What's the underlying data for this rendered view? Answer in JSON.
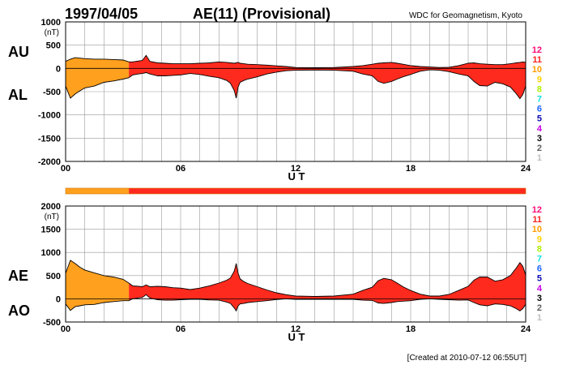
{
  "header": {
    "date": "1997/04/05",
    "title": "AE(11) (Provisional)",
    "source": "WDC for Geomagnetism, Kyoto"
  },
  "footer": {
    "created": "[Created at 2010-07-12 06:55UT]"
  },
  "colors": {
    "series_early": "#ffa01e",
    "series_main": "#ff2a1e",
    "outline": "#000000",
    "grid": "#999999"
  },
  "legend": {
    "levels": [
      {
        "label": "12",
        "color": "#ff0a78"
      },
      {
        "label": "11",
        "color": "#ff2020"
      },
      {
        "label": "10",
        "color": "#ff9c00"
      },
      {
        "label": "9",
        "color": "#ffd200"
      },
      {
        "label": "8",
        "color": "#aef000"
      },
      {
        "label": "7",
        "color": "#14e0e0"
      },
      {
        "label": "6",
        "color": "#1e64ff"
      },
      {
        "label": "5",
        "color": "#0a0ab4"
      },
      {
        "label": "4",
        "color": "#c800e6"
      },
      {
        "label": "3",
        "color": "#000000"
      },
      {
        "label": "2",
        "color": "#606060"
      },
      {
        "label": "1",
        "color": "#c0c0c0"
      }
    ]
  },
  "activity_bar": {
    "segments": [
      {
        "from": 0,
        "to": 3.3,
        "color": "#ffa01e"
      },
      {
        "from": 3.3,
        "to": 24,
        "color": "#ff2a1e"
      }
    ]
  },
  "chart_data": [
    {
      "type": "area",
      "name": "au-al-panel",
      "unit": "(nT)",
      "series_labels": {
        "upper": "AU",
        "lower": "AL"
      },
      "xlabel": "U T",
      "xlim": [
        0,
        24
      ],
      "ylim": [
        -2000,
        1000
      ],
      "yticks": [
        1000,
        500,
        0,
        -500,
        -1000,
        -1500,
        -2000
      ],
      "xticks": [
        {
          "v": 0,
          "label": "00"
        },
        {
          "v": 6,
          "label": "06"
        },
        {
          "v": 12,
          "label": "12"
        },
        {
          "v": 18,
          "label": "18"
        },
        {
          "v": 24,
          "label": "24"
        }
      ],
      "x": [
        0,
        0.25,
        0.5,
        0.75,
        1.0,
        1.5,
        2.0,
        2.5,
        3.0,
        3.3,
        3.5,
        3.8,
        4.0,
        4.2,
        4.4,
        4.8,
        5.2,
        5.6,
        6.0,
        6.5,
        7.0,
        7.5,
        8.0,
        8.4,
        8.6,
        8.8,
        8.9,
        9.0,
        9.1,
        9.3,
        9.5,
        10.0,
        10.5,
        11.0,
        11.5,
        12.0,
        13.0,
        14.0,
        15.0,
        15.5,
        16.0,
        16.3,
        16.6,
        17.0,
        17.3,
        17.6,
        18.0,
        18.5,
        19.0,
        19.5,
        20.0,
        20.5,
        21.0,
        21.3,
        21.6,
        22.0,
        22.4,
        22.8,
        23.2,
        23.5,
        23.7,
        23.85,
        24.0
      ],
      "upper": [
        150,
        200,
        230,
        220,
        210,
        200,
        200,
        190,
        180,
        140,
        140,
        160,
        170,
        280,
        150,
        120,
        110,
        100,
        100,
        100,
        110,
        120,
        140,
        130,
        120,
        110,
        120,
        130,
        110,
        100,
        90,
        80,
        70,
        55,
        40,
        20,
        15,
        20,
        40,
        60,
        90,
        110,
        120,
        130,
        110,
        90,
        60,
        40,
        30,
        20,
        25,
        60,
        110,
        120,
        100,
        90,
        80,
        80,
        100,
        120,
        130,
        140,
        130
      ],
      "lower": [
        -380,
        -640,
        -550,
        -480,
        -420,
        -380,
        -300,
        -270,
        -230,
        -200,
        -140,
        -120,
        -110,
        -90,
        -120,
        -160,
        -160,
        -150,
        -140,
        -110,
        -130,
        -170,
        -200,
        -260,
        -320,
        -480,
        -640,
        -400,
        -300,
        -260,
        -230,
        -180,
        -120,
        -80,
        -50,
        -40,
        -35,
        -40,
        -60,
        -120,
        -160,
        -280,
        -320,
        -280,
        -230,
        -180,
        -130,
        -60,
        -30,
        -40,
        -70,
        -120,
        -160,
        -280,
        -370,
        -380,
        -300,
        -330,
        -400,
        -540,
        -650,
        -560,
        -380
      ]
    },
    {
      "type": "area",
      "name": "ae-ao-panel",
      "unit": "(nT)",
      "series_labels": {
        "upper": "AE",
        "lower": "AO"
      },
      "xlabel": "U T",
      "xlim": [
        0,
        24
      ],
      "ylim": [
        -500,
        2000
      ],
      "yticks": [
        2000,
        1500,
        1000,
        500,
        0,
        -500
      ],
      "xticks": [
        {
          "v": 0,
          "label": "00"
        },
        {
          "v": 6,
          "label": "06"
        },
        {
          "v": 12,
          "label": "12"
        },
        {
          "v": 18,
          "label": "18"
        },
        {
          "v": 24,
          "label": "24"
        }
      ],
      "x": [
        0,
        0.25,
        0.5,
        0.75,
        1.0,
        1.5,
        2.0,
        2.5,
        3.0,
        3.3,
        3.5,
        3.8,
        4.0,
        4.2,
        4.4,
        4.8,
        5.2,
        5.6,
        6.0,
        6.5,
        7.0,
        7.5,
        8.0,
        8.4,
        8.6,
        8.8,
        8.9,
        9.0,
        9.1,
        9.3,
        9.5,
        10.0,
        10.5,
        11.0,
        11.5,
        12.0,
        13.0,
        14.0,
        15.0,
        15.5,
        16.0,
        16.3,
        16.6,
        17.0,
        17.3,
        17.6,
        18.0,
        18.5,
        19.0,
        19.5,
        20.0,
        20.5,
        21.0,
        21.3,
        21.6,
        22.0,
        22.4,
        22.8,
        23.2,
        23.5,
        23.7,
        23.85,
        24.0
      ],
      "upper": [
        550,
        830,
        760,
        680,
        620,
        560,
        500,
        470,
        420,
        340,
        280,
        270,
        260,
        300,
        260,
        270,
        260,
        240,
        230,
        200,
        230,
        280,
        340,
        400,
        450,
        600,
        760,
        550,
        430,
        370,
        330,
        260,
        190,
        130,
        90,
        60,
        50,
        60,
        100,
        180,
        250,
        390,
        440,
        410,
        340,
        260,
        180,
        100,
        60,
        60,
        95,
        180,
        270,
        400,
        470,
        470,
        380,
        410,
        500,
        660,
        780,
        700,
        510
      ],
      "lower": [
        -110,
        -250,
        -170,
        -150,
        -130,
        -120,
        -80,
        -60,
        -40,
        -40,
        0,
        20,
        30,
        90,
        15,
        -20,
        -30,
        -30,
        -20,
        -10,
        -10,
        -25,
        -30,
        -70,
        -100,
        -200,
        -260,
        -150,
        -110,
        -100,
        -80,
        -60,
        -40,
        -15,
        0,
        -10,
        -10,
        -10,
        -10,
        -30,
        -35,
        -90,
        -100,
        -80,
        -60,
        -50,
        -40,
        -10,
        0,
        -10,
        -20,
        -30,
        -25,
        -80,
        -130,
        -150,
        -110,
        -120,
        -150,
        -210,
        -260,
        -210,
        -120
      ]
    }
  ]
}
